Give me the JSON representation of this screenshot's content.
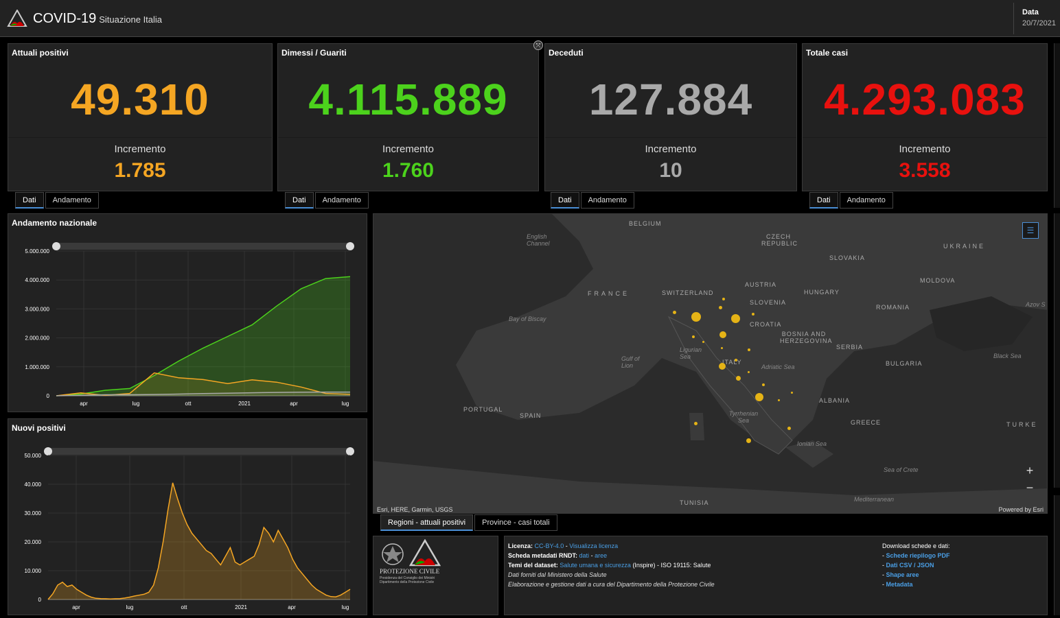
{
  "header": {
    "title": "COVID-19",
    "subtitle": "Situazione Italia",
    "date_label": "Data",
    "date_value": "20/7/2021"
  },
  "kpis": [
    {
      "title": "Attuali positivi",
      "value": "49.310",
      "inc_label": "Incremento",
      "inc_value": "1.785",
      "color": "#f5a623"
    },
    {
      "title": "Dimessi / Guariti",
      "value": "4.115.889",
      "inc_label": "Incremento",
      "inc_value": "1.760",
      "color": "#4cd21c"
    },
    {
      "title": "Deceduti",
      "value": "127.884",
      "inc_label": "Incremento",
      "inc_value": "10",
      "color": "#a9a9a9"
    },
    {
      "title": "Totale casi",
      "value": "4.293.083",
      "inc_label": "Incremento",
      "inc_value": "3.558",
      "color": "#e8110e"
    }
  ],
  "kpi_tabs": {
    "dati": "Dati",
    "andamento": "Andamento"
  },
  "chart_national": {
    "title": "Andamento nazionale",
    "y_ticks": [
      "5.000.000",
      "4.000.000",
      "3.000.000",
      "2.000.000",
      "1.000.000",
      "0"
    ],
    "x_ticks": [
      "apr",
      "lug",
      "ott",
      "2021",
      "apr",
      "lug"
    ]
  },
  "chart_new": {
    "title": "Nuovi positivi",
    "y_ticks": [
      "50.000",
      "40.000",
      "30.000",
      "20.000",
      "10.000",
      "0"
    ],
    "x_ticks": [
      "apr",
      "lug",
      "ott",
      "2021",
      "apr",
      "lug"
    ]
  },
  "chart_data": [
    {
      "type": "area",
      "title": "Andamento nazionale",
      "x": [
        "2020-02",
        "2020-04",
        "2020-07",
        "2020-10",
        "2020-11",
        "2020-12",
        "2021-01",
        "2021-02",
        "2021-03",
        "2021-04",
        "2021-05",
        "2021-06",
        "2021-07"
      ],
      "ylim": [
        0,
        5000000
      ],
      "series": [
        {
          "color": "#4cd21c",
          "values": [
            0,
            60000,
            190000,
            250000,
            700000,
            1200000,
            1650000,
            2050000,
            2450000,
            3100000,
            3700000,
            4050000,
            4115889
          ]
        },
        {
          "color": "#f5a623",
          "values": [
            0,
            100000,
            15000,
            80000,
            790000,
            620000,
            560000,
            420000,
            550000,
            470000,
            300000,
            80000,
            49310
          ]
        },
        {
          "color": "#a9a9a9",
          "values": [
            0,
            15000,
            35000,
            36000,
            45000,
            60000,
            75000,
            90000,
            105000,
            115000,
            123000,
            127000,
            127884
          ]
        }
      ]
    },
    {
      "type": "area",
      "title": "Nuovi positivi",
      "ylim": [
        0,
        50000
      ],
      "series": [
        {
          "color": "#f5a623",
          "values": [
            0,
            2000,
            5000,
            6000,
            4500,
            5000,
            3500,
            2500,
            1500,
            800,
            400,
            300,
            250,
            200,
            250,
            300,
            500,
            800,
            1200,
            1500,
            1800,
            2500,
            5000,
            11000,
            20000,
            31000,
            40500,
            35000,
            30000,
            26000,
            23000,
            21000,
            19000,
            17000,
            16000,
            14000,
            12000,
            15000,
            18000,
            13000,
            12000,
            13000,
            14000,
            15000,
            19000,
            25000,
            23000,
            20000,
            24000,
            21000,
            18000,
            14000,
            11000,
            9000,
            7000,
            5000,
            3500,
            2500,
            1500,
            1000,
            900,
            1500,
            2500,
            3558
          ]
        }
      ]
    }
  ],
  "map": {
    "countries": [
      "BELGIUM",
      "CZECH REPUBLIC",
      "UKRAINE",
      "SLOVAKIA",
      "FRANCE",
      "SWITZERLAND",
      "AUSTRIA",
      "HUNGARY",
      "MOLDOVA",
      "SLOVENIA",
      "ROMANIA",
      "CROATIA",
      "BOSNIA AND HERZEGOVINA",
      "SERBIA",
      "ITALY",
      "BULGARIA",
      "PORTUGAL",
      "SPAIN",
      "ALBANIA",
      "GREECE",
      "TURKE",
      "TUNISIA"
    ],
    "seas": [
      "English Channel",
      "Bay of Biscay",
      "Ligurian Sea",
      "Gulf of Lion",
      "Adriatic Sea",
      "Tyrrhenian Sea",
      "Ionian Sea",
      "Black Sea",
      "Sea of Crete",
      "Mediterranean",
      "Azov S"
    ],
    "attribution": "Esri, HERE, Garmin, USGS",
    "powered": "Powered by Esri"
  },
  "map_tabs": {
    "regioni": "Regioni - attuali positivi",
    "province": "Province - casi totali"
  },
  "protezione": {
    "name": "PROTEZIONE CIVILE",
    "line1": "Presidenza del Consiglio dei Ministri",
    "line2": "Dipartimento della Protezione Civile"
  },
  "info": {
    "licenza_label": "Licenza:",
    "licenza_link": "CC-BY-4.0",
    "licenza_sep": " - ",
    "licenza_view": "Visualizza licenza",
    "rndt_label": "Scheda metadati RNDT:",
    "rndt_dati": "dati",
    "rndt_sep": " - ",
    "rndt_aree": "aree",
    "temi_label": "Temi del dataset:",
    "temi_link": "Salute umana e sicurezza",
    "temi_rest": " (Inspire) - ISO 19115: Salute",
    "line4": "Dati forniti dal Ministero della Salute",
    "line5": "Elaborazione e gestione dati a cura del Dipartimento della Protezione Civile",
    "download_title": "Download schede e dati:",
    "downloads": [
      "Schede riepilogo PDF",
      "Dati CSV / JSON",
      "Shape aree",
      "Metadata"
    ]
  }
}
